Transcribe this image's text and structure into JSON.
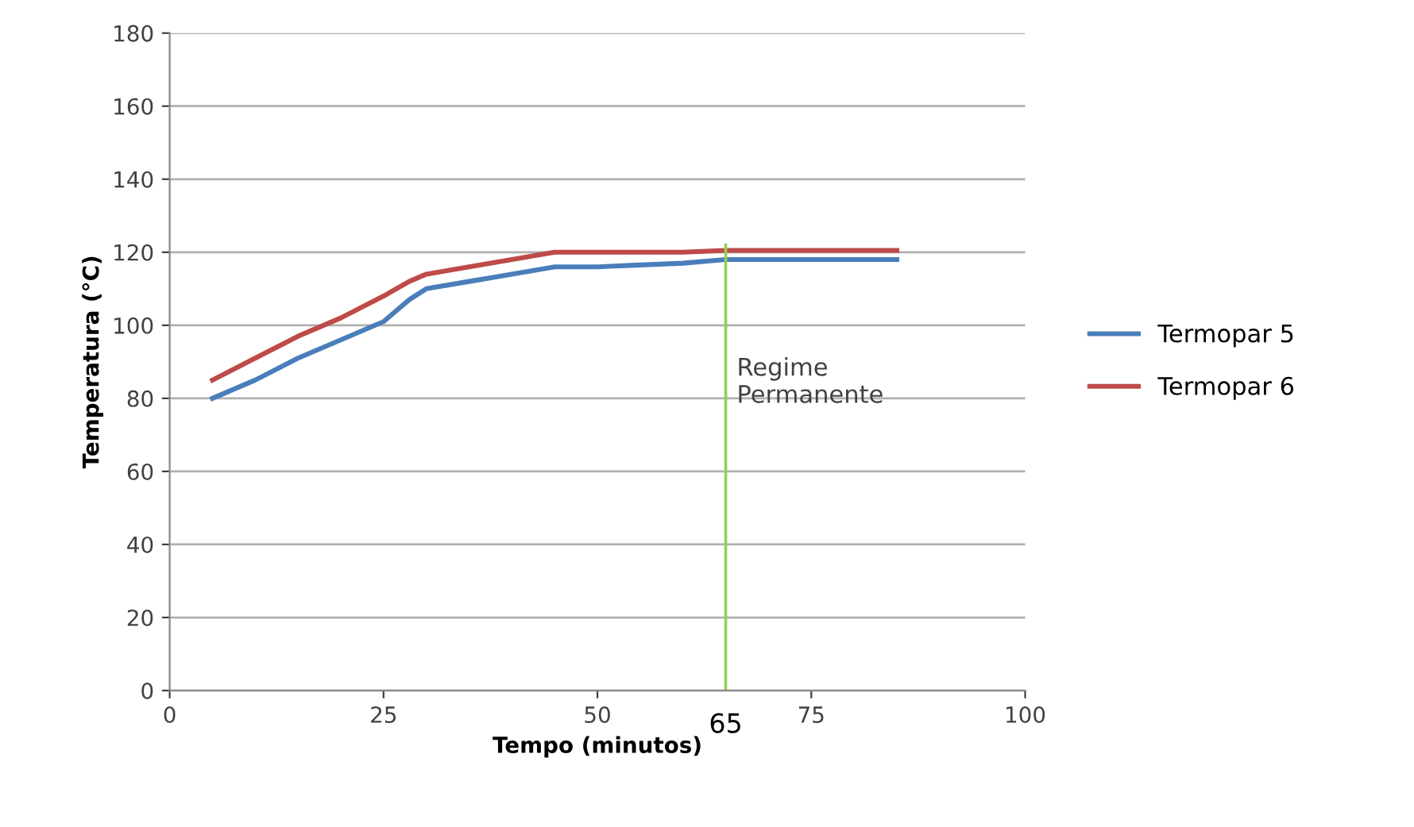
{
  "chart_data": {
    "type": "line",
    "xlabel": "Tempo (minutos)",
    "ylabel": "Temperatura (°C)",
    "x": [
      5,
      10,
      15,
      20,
      25,
      28,
      30,
      35,
      40,
      45,
      50,
      55,
      60,
      65,
      70,
      75,
      80,
      85
    ],
    "series": [
      {
        "name": "Termopar 5",
        "color": "#4a7ebb",
        "values": [
          80,
          85,
          91,
          96,
          101,
          107,
          110,
          112,
          114,
          116,
          116,
          116.5,
          117,
          118,
          118,
          118,
          118,
          118
        ]
      },
      {
        "name": "Termopar 6",
        "color": "#be4b48",
        "values": [
          85,
          91,
          97,
          102,
          108,
          112,
          114,
          116,
          118,
          120,
          120,
          120,
          120,
          120.5,
          120.5,
          120.5,
          120.5,
          120.5
        ]
      }
    ],
    "xlim": [
      0,
      100
    ],
    "xticks": [
      0,
      25,
      50,
      75,
      100
    ],
    "ylim": [
      0,
      180
    ],
    "yticks": [
      0,
      20,
      40,
      60,
      80,
      100,
      120,
      140,
      160,
      180
    ],
    "grid": "y",
    "legend": "right",
    "marker": "none",
    "line_style": "solid",
    "ref_lines": [
      {
        "axis": "x",
        "value": 65,
        "label": "65",
        "color": "#92d050"
      }
    ],
    "annotations": [
      "Regime\nPermanente"
    ]
  }
}
